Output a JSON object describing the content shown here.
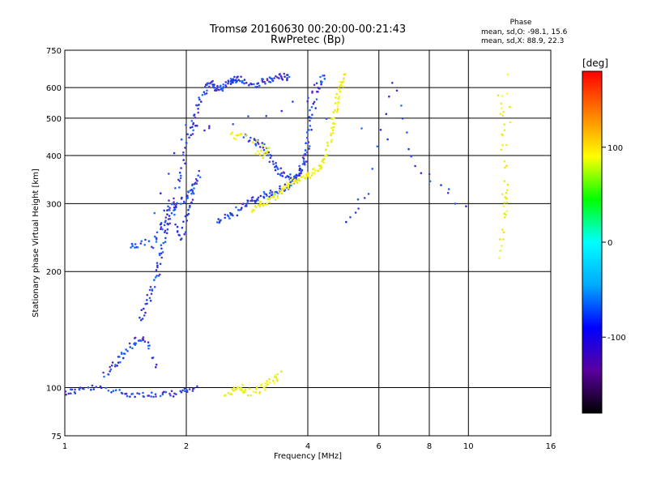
{
  "chart_data": {
    "type": "scatter",
    "title": "Tromsø 20160630 00:20:00-00:21:43",
    "subtitle": "RwPretec (Bp)",
    "xlabel": "Frequency [MHz]",
    "ylabel": "Stationary phase Virtual Height [km]",
    "x_scale": "log",
    "y_scale": "log",
    "xlim": [
      1,
      16
    ],
    "ylim": [
      75,
      750
    ],
    "x_ticks": [
      1,
      2,
      4,
      6,
      8,
      10,
      16
    ],
    "y_ticks": [
      75,
      100,
      200,
      300,
      400,
      500,
      600,
      750
    ],
    "x_gridlines": [
      2,
      4,
      6,
      8,
      10
    ],
    "y_gridlines": [
      100,
      200,
      300,
      400,
      500,
      600
    ],
    "phase_stats": {
      "header": "Phase",
      "line_o": "mean, sd,O: -98.1, 15.6",
      "line_x": "mean, sd,X:  88.9, 22.3"
    },
    "colorbar": {
      "label": "[deg]",
      "range": [
        -180,
        180
      ],
      "ticks": [
        100,
        0,
        -100
      ],
      "colormap": [
        "#000000",
        "#5a00a0",
        "#0000ff",
        "#00aaff",
        "#00ffff",
        "#00ff00",
        "#ffff00",
        "#ff8000",
        "#ff0000"
      ]
    },
    "series": [
      {
        "mode": "O",
        "phase_mean": -98.1,
        "color": "#1f3fe0",
        "traces": [
          {
            "x": [
              1.0,
              1.05,
              1.1,
              1.2,
              1.3,
              1.4,
              1.5,
              1.6,
              1.7,
              1.8,
              1.9,
              2.0,
              2.1
            ],
            "y": [
              97,
              98,
              99,
              100,
              98,
              97,
              96,
              96,
              95,
              96,
              97,
              98,
              99
            ]
          },
          {
            "x": [
              1.25,
              1.3,
              1.35,
              1.4,
              1.45,
              1.5,
              1.55,
              1.6,
              1.7
            ],
            "y": [
              108,
              112,
              117,
              122,
              128,
              132,
              134,
              130,
              112
            ]
          },
          {
            "x": [
              1.55,
              1.58,
              1.62,
              1.66,
              1.7,
              1.72,
              1.75,
              1.78,
              1.8,
              1.85,
              1.9,
              2.0,
              2.05,
              2.1,
              2.15
            ],
            "y": [
              150,
              160,
              172,
              185,
              200,
              215,
              235,
              255,
              270,
              290,
              300,
              310,
              320,
              340,
              360
            ]
          },
          {
            "x": [
              1.65,
              1.7,
              1.75,
              1.8,
              1.85,
              1.9,
              1.95,
              2.0,
              2.05,
              2.1
            ],
            "y": [
              230,
              250,
              270,
              290,
              310,
              260,
              240,
              280,
              300,
              330
            ]
          },
          {
            "x": [
              1.9,
              1.95,
              2.0,
              2.05,
              2.1,
              2.15,
              2.2,
              2.25,
              2.3,
              2.35,
              2.4,
              2.45,
              2.5,
              2.55,
              2.6,
              2.65,
              2.7,
              2.8,
              2.9,
              3.0,
              3.1,
              3.2,
              3.3,
              3.4,
              3.5,
              3.6
            ],
            "y": [
              330,
              360,
              420,
              460,
              500,
              540,
              580,
              610,
              620,
              600,
              590,
              600,
              610,
              620,
              625,
              630,
              635,
              620,
              610,
              612,
              620,
              625,
              630,
              640,
              640,
              635
            ]
          },
          {
            "x": [
              2.4,
              2.5,
              2.6,
              2.7,
              2.8,
              2.9,
              3.0,
              3.1,
              3.2,
              3.3,
              3.4,
              3.5,
              3.6,
              3.7,
              3.8,
              3.9,
              4.0
            ],
            "y": [
              270,
              275,
              280,
              290,
              300,
              305,
              310,
              315,
              318,
              320,
              325,
              330,
              335,
              345,
              360,
              380,
              420
            ]
          },
          {
            "x": [
              2.8,
              2.9,
              3.0,
              3.1,
              3.2,
              3.3,
              3.4,
              3.5,
              3.6,
              3.7,
              3.8,
              3.9,
              4.0,
              4.05,
              4.1,
              4.2,
              4.3,
              4.4
            ],
            "y": [
              450,
              440,
              430,
              420,
              400,
              380,
              365,
              355,
              350,
              350,
              360,
              380,
              420,
              470,
              520,
              580,
              620,
              640
            ]
          },
          {
            "x": [
              1.45,
              1.5,
              1.6,
              2.0,
              2.3,
              4.0,
              4.3
            ],
            "y": [
              232,
              235,
              238,
              480,
              470,
              560,
              620
            ]
          },
          {
            "x": [
              5.0,
              5.6,
              6.5,
              7.3,
              9.8,
              4.5
            ],
            "y": [
              270,
              320,
              620,
              370,
              290,
              505
            ]
          }
        ]
      },
      {
        "mode": "X",
        "phase_mean": 88.9,
        "color": "#f0f020",
        "traces": [
          {
            "x": [
              2.5,
              2.6,
              2.7,
              2.75,
              2.8,
              3.0,
              3.1,
              3.2,
              3.3,
              3.4
            ],
            "y": [
              97,
              98,
              99,
              100,
              97,
              98,
              100,
              103,
              105,
              108
            ]
          },
          {
            "x": [
              2.9,
              3.0,
              3.1,
              3.2,
              3.3,
              3.4,
              3.5,
              3.6,
              3.7,
              3.8,
              3.9,
              4.0,
              4.1,
              4.2,
              4.3,
              4.4,
              4.5,
              4.55,
              4.6,
              4.65,
              4.7,
              4.75,
              4.8,
              4.85,
              4.9
            ],
            "y": [
              290,
              295,
              300,
              305,
              310,
              320,
              330,
              340,
              345,
              348,
              350,
              355,
              360,
              370,
              380,
              395,
              420,
              450,
              480,
              510,
              540,
              570,
              600,
              620,
              640
            ]
          },
          {
            "x": [
              12.3,
              12.4,
              12.5,
              12.6
            ],
            "y": [
              280,
              300,
              330,
              640
            ]
          },
          {
            "x": [
              12.0,
              12.1,
              12.2,
              12.1,
              12.0
            ],
            "y": [
              580,
              500,
              420,
              260,
              220
            ]
          },
          {
            "x": [
              3.0,
              3.1,
              3.2,
              2.6,
              2.7
            ],
            "y": [
              410,
              400,
              420,
              455,
              445
            ]
          }
        ]
      }
    ]
  }
}
